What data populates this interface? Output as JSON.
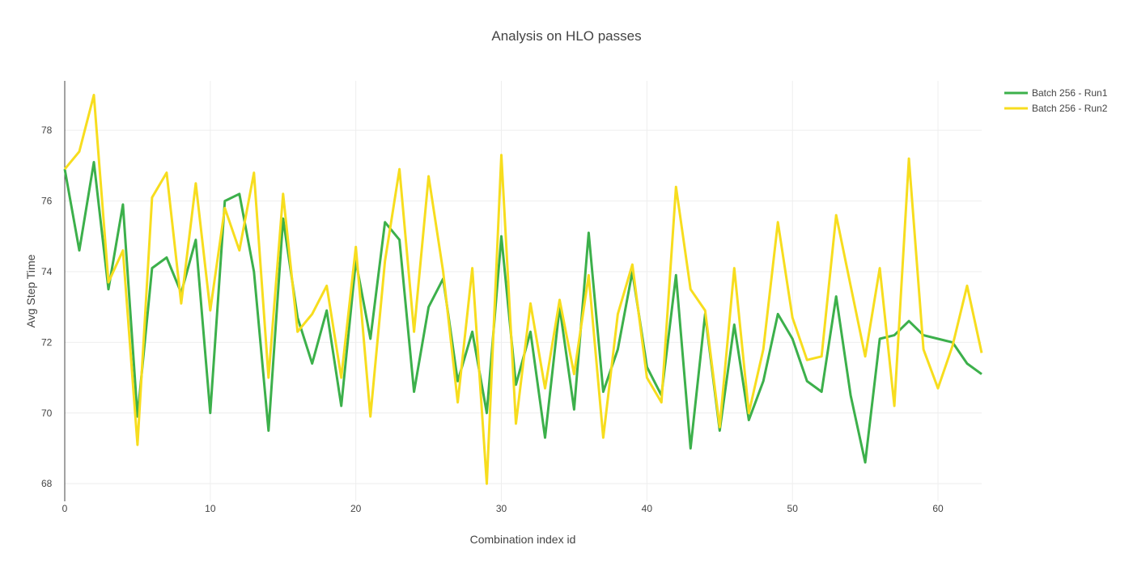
{
  "chart_data": {
    "type": "line",
    "title": "Analysis on HLO passes",
    "xlabel": "Combination index id",
    "ylabel": "Avg Step Time",
    "xlim": [
      0,
      63
    ],
    "ylim": [
      67.5,
      79.4
    ],
    "xticks": [
      0,
      10,
      20,
      30,
      40,
      50,
      60
    ],
    "yticks": [
      68,
      70,
      72,
      74,
      76,
      78
    ],
    "grid": true,
    "legend_position": "top-right",
    "x": [
      0,
      1,
      2,
      3,
      4,
      5,
      6,
      7,
      8,
      9,
      10,
      11,
      12,
      13,
      14,
      15,
      16,
      17,
      18,
      19,
      20,
      21,
      22,
      23,
      24,
      25,
      26,
      27,
      28,
      29,
      30,
      31,
      32,
      33,
      34,
      35,
      36,
      37,
      38,
      39,
      40,
      41,
      42,
      43,
      44,
      45,
      46,
      47,
      48,
      49,
      50,
      51,
      52,
      53,
      54,
      55,
      56,
      57,
      58,
      59,
      60,
      61,
      62,
      63
    ],
    "series": [
      {
        "name": "Batch 256 - Run1",
        "color": "#3cb04b",
        "values": [
          76.9,
          74.6,
          77.1,
          73.5,
          75.9,
          69.9,
          74.1,
          74.4,
          73.4,
          74.9,
          70.0,
          76.0,
          76.2,
          74.0,
          69.5,
          75.5,
          72.7,
          71.4,
          72.9,
          70.2,
          74.3,
          72.1,
          75.4,
          74.9,
          70.6,
          73.0,
          73.8,
          70.9,
          72.3,
          70.0,
          75.0,
          70.8,
          72.3,
          69.3,
          73.0,
          70.1,
          75.1,
          70.6,
          71.8,
          74.0,
          71.3,
          70.5,
          73.9,
          69.0,
          72.8,
          69.5,
          72.5,
          69.8,
          70.9,
          72.8,
          72.1,
          70.9,
          70.6,
          73.3,
          70.5,
          68.6,
          72.1,
          72.2,
          72.6,
          72.2,
          72.1,
          72.0,
          71.4,
          71.1
        ]
      },
      {
        "name": "Batch 256 - Run2",
        "color": "#f7dd1e",
        "values": [
          76.9,
          77.4,
          79.0,
          73.7,
          74.6,
          69.1,
          76.1,
          76.8,
          73.1,
          76.5,
          72.9,
          75.8,
          74.6,
          76.8,
          71.0,
          76.2,
          72.3,
          72.8,
          73.6,
          71.0,
          74.7,
          69.9,
          74.3,
          76.9,
          72.3,
          76.7,
          74.0,
          70.3,
          74.1,
          68.0,
          77.3,
          69.7,
          73.1,
          70.7,
          73.2,
          71.1,
          73.9,
          69.3,
          72.8,
          74.2,
          71.0,
          70.3,
          76.4,
          73.5,
          72.9,
          69.6,
          74.1,
          70.0,
          71.8,
          75.4,
          72.7,
          71.5,
          71.6,
          75.6,
          73.6,
          71.6,
          74.1,
          70.2,
          77.2,
          71.8,
          70.7,
          71.9,
          73.6,
          71.7
        ]
      }
    ]
  }
}
